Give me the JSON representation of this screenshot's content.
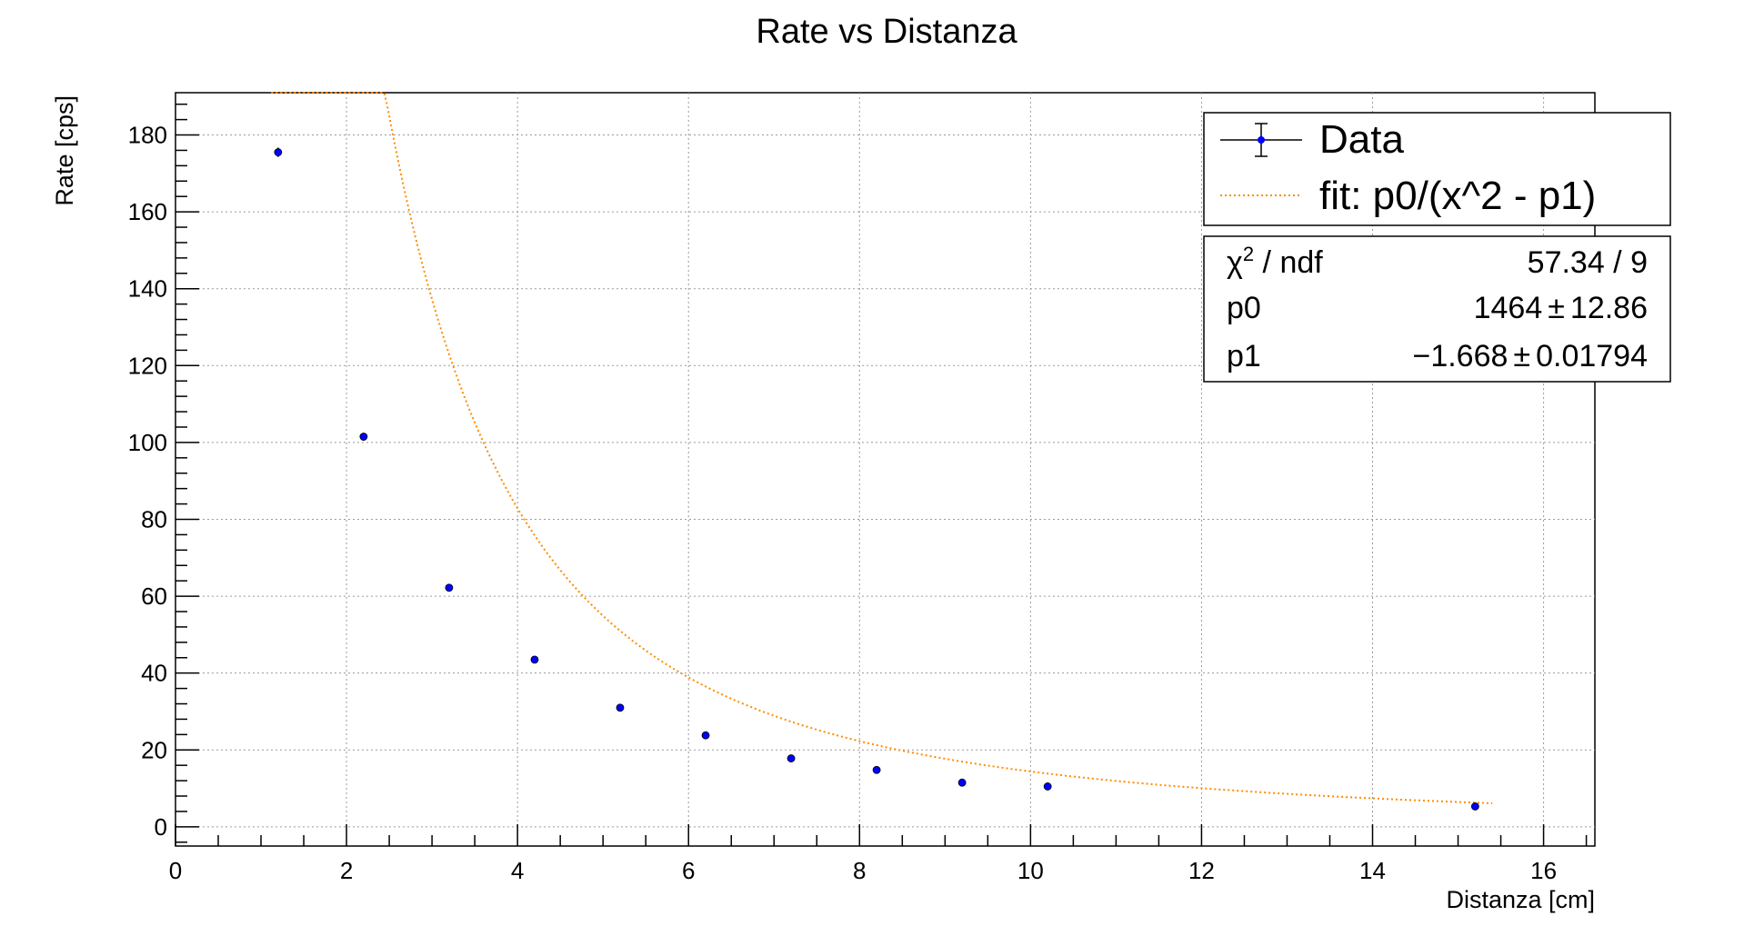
{
  "chart_data": {
    "type": "scatter",
    "title": "Rate vs Distanza",
    "xlabel": "Distanza [cm]",
    "ylabel": "Rate [cps]",
    "xlim": [
      0,
      16.6
    ],
    "ylim": [
      -5,
      191
    ],
    "grid": true,
    "x_ticks": [
      0,
      2,
      4,
      6,
      8,
      10,
      12,
      14,
      16
    ],
    "y_ticks": [
      0,
      20,
      40,
      60,
      80,
      100,
      120,
      140,
      160,
      180
    ],
    "x_tick_labels": [
      "0",
      "2",
      "4",
      "6",
      "8",
      "10",
      "12",
      "14",
      "16"
    ],
    "y_tick_labels": [
      "0",
      "20",
      "40",
      "60",
      "80",
      "100",
      "120",
      "140",
      "160",
      "180"
    ],
    "series": [
      {
        "name": "Data",
        "marker_color": "#0000ff",
        "x": [
          1.2,
          2.2,
          3.2,
          4.2,
          5.2,
          6.2,
          7.2,
          8.2,
          9.2,
          10.2,
          15.2
        ],
        "y": [
          175.5,
          101.5,
          62.2,
          43.5,
          31.0,
          23.8,
          17.8,
          14.8,
          11.5,
          10.5,
          5.3
        ],
        "y_err": [
          1.2,
          0.9,
          0.7,
          0.6,
          0.5,
          0.5,
          0.4,
          0.4,
          0.3,
          0.3,
          0.2
        ]
      },
      {
        "name": "fit: p0/(x^2 - p1)",
        "line_color": "#ff8c00",
        "line_style": "dotted",
        "function": {
          "p0": 1464,
          "p1": -1.668
        },
        "x_range": [
          1.12,
          15.4
        ]
      }
    ],
    "legend_position": "top-right",
    "stats": {
      "chi2_label": "χ",
      "chi2_sup": "2",
      "chi2_suffix": " / ndf",
      "chi2_value": "57.34 / 9",
      "p0_label": "p0",
      "p0_value": "1464",
      "p0_error": "12.86",
      "p1_label": "p1",
      "p1_value": "−1.668",
      "p1_error": "0.01794",
      "pm": "±"
    }
  }
}
